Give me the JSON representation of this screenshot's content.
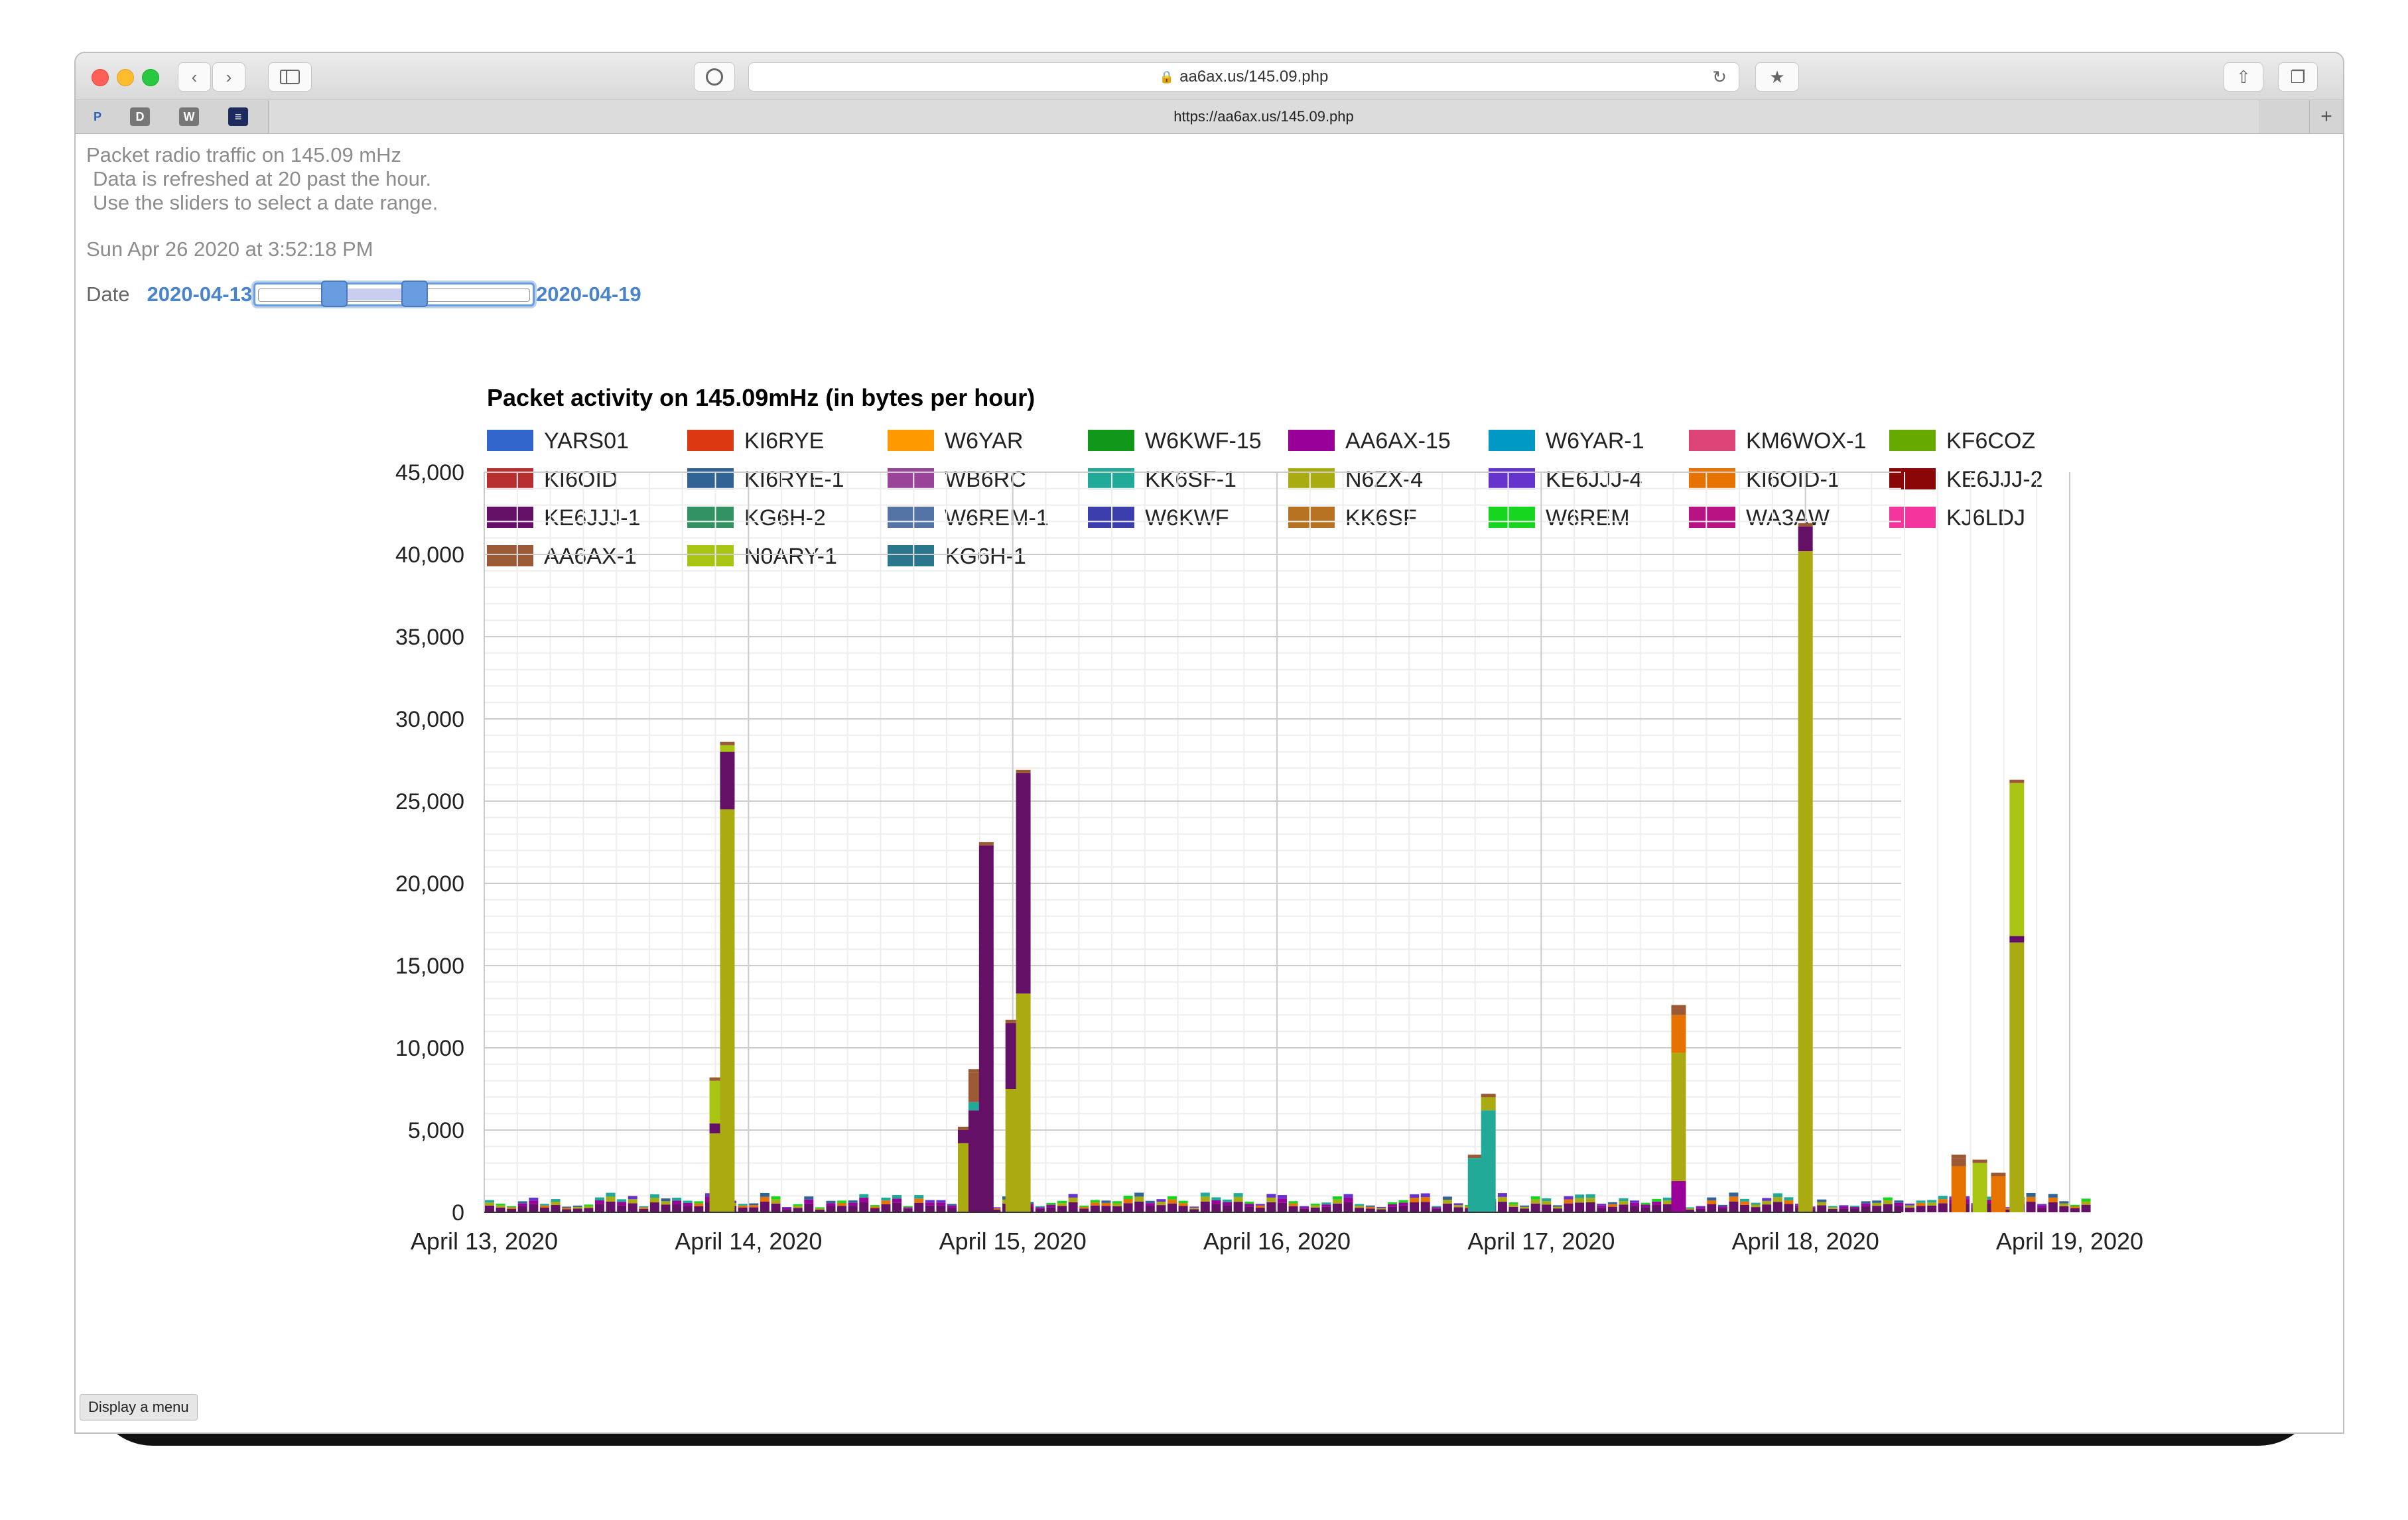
{
  "browser": {
    "url": "aa6ax.us/145.09.php",
    "tab_title": "https://aa6ax.us/145.09.php",
    "favorites": [
      {
        "letter": "P",
        "color": "#2c5fb8"
      },
      {
        "letter": "D",
        "color": "#777777"
      },
      {
        "letter": "W",
        "color": "#777777"
      },
      {
        "letter": "≡",
        "color": "#1c2a5e"
      }
    ]
  },
  "page": {
    "intro_lines": [
      "Packet radio traffic on 145.09 mHz",
      "Data is refreshed at 20 past the hour.",
      "Use the sliders to select a date range."
    ],
    "timestamp": "Sun Apr 26 2020 at 3:52:18 PM",
    "date_label": "Date",
    "date_start": "2020-04-13",
    "date_end": "2020-04-19",
    "slider": {
      "low_fraction": 0.28,
      "high_fraction": 0.57
    },
    "menu_button": "Display a menu"
  },
  "chart_data": {
    "type": "bar",
    "stacked": true,
    "title": "Packet activity on 145.09mHz (in bytes per hour)",
    "y_ticks": [
      "45,000",
      "40,000",
      "35,000",
      "30,000",
      "25,000",
      "20,000",
      "15,000",
      "10,000",
      "5,000",
      "0"
    ],
    "ylim": [
      0,
      45000
    ],
    "x_tick_labels": [
      "April 13, 2020",
      "April 14, 2020",
      "April 15, 2020",
      "April 16, 2020",
      "April 17, 2020",
      "April 18, 2020",
      "April 19, 2020"
    ],
    "grid": true,
    "legend_position": "top",
    "legend": [
      {
        "name": "YARS01",
        "color": "#3366cc"
      },
      {
        "name": "KI6RYE",
        "color": "#dc3912"
      },
      {
        "name": "W6YAR",
        "color": "#ff9900"
      },
      {
        "name": "W6KWF-15",
        "color": "#109618"
      },
      {
        "name": "AA6AX-15",
        "color": "#990099"
      },
      {
        "name": "W6YAR-1",
        "color": "#0099c6"
      },
      {
        "name": "KM6WOX-1",
        "color": "#dd4477"
      },
      {
        "name": "KF6COZ",
        "color": "#66aa00"
      },
      {
        "name": "KI6OID",
        "color": "#b82e2e"
      },
      {
        "name": "KI6RYE-1",
        "color": "#316395"
      },
      {
        "name": "WB6RC",
        "color": "#994499"
      },
      {
        "name": "KK6SF-1",
        "color": "#22aa99"
      },
      {
        "name": "N6ZX-4",
        "color": "#aaaa11"
      },
      {
        "name": "KE6JJJ-4",
        "color": "#6633cc"
      },
      {
        "name": "KI6OID-1",
        "color": "#e67300"
      },
      {
        "name": "KE6JJJ-2",
        "color": "#8b0707"
      },
      {
        "name": "KE6JJJ-1",
        "color": "#651067"
      },
      {
        "name": "KG6H-2",
        "color": "#329262"
      },
      {
        "name": "W6REM-1",
        "color": "#5574a6"
      },
      {
        "name": "W6KWF",
        "color": "#3b3eac"
      },
      {
        "name": "KK6SF",
        "color": "#b77322"
      },
      {
        "name": "W6REM",
        "color": "#16d620"
      },
      {
        "name": "WA3AW",
        "color": "#b91383"
      },
      {
        "name": "KJ6LDJ",
        "color": "#f4359e"
      },
      {
        "name": "AA6AX-1",
        "color": "#9c5935"
      },
      {
        "name": "N0ARY-1",
        "color": "#a9c413"
      },
      {
        "name": "KG6H-1",
        "color": "#2a778d"
      }
    ],
    "notable_bars": [
      {
        "x_days": 0.88,
        "stack": [
          {
            "series": "N6ZX-4",
            "value": 4800
          },
          {
            "series": "KE6JJJ-1",
            "value": 600
          },
          {
            "series": "N0ARY-1",
            "value": 2600
          }
        ]
      },
      {
        "x_days": 0.92,
        "stack": [
          {
            "series": "N6ZX-4",
            "value": 24500
          },
          {
            "series": "KE6JJJ-1",
            "value": 3500
          },
          {
            "series": "N0ARY-1",
            "value": 400
          }
        ]
      },
      {
        "x_days": 1.82,
        "stack": [
          {
            "series": "N6ZX-4",
            "value": 4200
          },
          {
            "series": "KE6JJJ-1",
            "value": 800
          }
        ]
      },
      {
        "x_days": 1.86,
        "stack": [
          {
            "series": "KE6JJJ-1",
            "value": 6200
          },
          {
            "series": "KK6SF-1",
            "value": 500
          },
          {
            "series": "AA6AX-1",
            "value": 1800
          }
        ]
      },
      {
        "x_days": 1.9,
        "stack": [
          {
            "series": "KE6JJJ-1",
            "value": 22300
          }
        ]
      },
      {
        "x_days": 2.0,
        "stack": [
          {
            "series": "N6ZX-4",
            "value": 7500
          },
          {
            "series": "KE6JJJ-1",
            "value": 4000
          }
        ]
      },
      {
        "x_days": 2.04,
        "stack": [
          {
            "series": "N6ZX-4",
            "value": 13300
          },
          {
            "series": "KE6JJJ-1",
            "value": 13400
          }
        ]
      },
      {
        "x_days": 3.75,
        "stack": [
          {
            "series": "KK6SF-1",
            "value": 3300
          }
        ]
      },
      {
        "x_days": 3.8,
        "stack": [
          {
            "series": "KK6SF-1",
            "value": 6200
          },
          {
            "series": "N6ZX-4",
            "value": 800
          }
        ]
      },
      {
        "x_days": 4.52,
        "stack": [
          {
            "series": "AA6AX-15",
            "value": 1900
          },
          {
            "series": "N6ZX-4",
            "value": 7800
          },
          {
            "series": "KI6OID-1",
            "value": 2300
          },
          {
            "series": "AA6AX-1",
            "value": 400
          }
        ]
      },
      {
        "x_days": 5.0,
        "stack": [
          {
            "series": "N6ZX-4",
            "value": 40200
          },
          {
            "series": "KE6JJJ-1",
            "value": 1500
          }
        ]
      },
      {
        "x_days": 5.58,
        "stack": [
          {
            "series": "KI6OID-1",
            "value": 2800
          },
          {
            "series": "AA6AX-1",
            "value": 500
          }
        ]
      },
      {
        "x_days": 5.66,
        "stack": [
          {
            "series": "N0ARY-1",
            "value": 3000
          }
        ]
      },
      {
        "x_days": 5.73,
        "stack": [
          {
            "series": "KI6OID-1",
            "value": 2200
          }
        ]
      },
      {
        "x_days": 5.8,
        "stack": [
          {
            "series": "N6ZX-4",
            "value": 16400
          },
          {
            "series": "KE6JJJ-1",
            "value": 400
          },
          {
            "series": "N0ARY-1",
            "value": 9300
          }
        ]
      }
    ]
  }
}
